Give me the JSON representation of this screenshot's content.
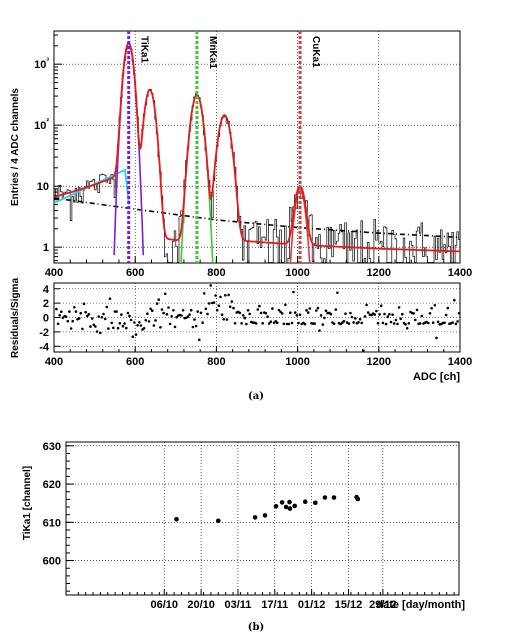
{
  "chart_data": [
    {
      "id": "spectrum",
      "type": "line",
      "ylabel": "Entries / 4 ADC channels",
      "yscale": "log",
      "xlim": [
        400,
        1400
      ],
      "ylim": [
        0.55,
        3500
      ],
      "xticks": [
        400,
        600,
        800,
        1000,
        1200,
        1400
      ],
      "yticks": [
        {
          "v": 1,
          "label": "1"
        },
        {
          "v": 10,
          "label": "10"
        },
        {
          "v": 100,
          "label": "10²"
        },
        {
          "v": 1000,
          "label": "10³"
        }
      ],
      "grid": true,
      "line_labels": [
        {
          "text": "TiKa1",
          "x": 584
        },
        {
          "text": "MnKa1",
          "x": 752
        },
        {
          "text": "CuKa1",
          "x": 1006
        }
      ],
      "peaks": [
        {
          "x": 584,
          "height": 2200,
          "width": 9
        },
        {
          "x": 636,
          "height": 380,
          "width": 10
        },
        {
          "x": 752,
          "height": 310,
          "width": 11
        },
        {
          "x": 820,
          "height": 145,
          "width": 12
        },
        {
          "x": 1006,
          "height": 9,
          "width": 10
        }
      ],
      "background": [
        [
          400,
          6.4
        ],
        [
          600,
          4.2
        ],
        [
          800,
          2.8
        ],
        [
          1000,
          2.1
        ],
        [
          1200,
          1.7
        ],
        [
          1400,
          1.45
        ]
      ],
      "series": [
        {
          "role": "data",
          "color": "#000000"
        },
        {
          "role": "total-fit",
          "color": "#e41a1c"
        },
        {
          "role": "background",
          "color": "#000000",
          "style": "dash-dot"
        },
        {
          "role": "tail",
          "color": "#2ad4e8",
          "points": [
            [
              400,
              5.3
            ],
            [
              575,
              18.5
            ],
            [
              585,
              5
            ]
          ]
        },
        {
          "role": "TiKa1-line",
          "color": "#7f1ae0",
          "x": 584
        },
        {
          "role": "MnKa1-line",
          "color": "#3cc63c",
          "x": 752
        },
        {
          "role": "CuKa1-line",
          "color": "#d04040",
          "x": 1006
        }
      ]
    },
    {
      "id": "residuals",
      "type": "scatter",
      "ylabel": "Residuals/Sigma",
      "xlabel": "ADC [ch]",
      "xlim": [
        400,
        1400
      ],
      "ylim": [
        -4.8,
        4.8
      ],
      "xticks": [
        400,
        600,
        800,
        1000,
        1200,
        1400
      ],
      "yticks": [
        -4,
        -2,
        0,
        2,
        4
      ],
      "grid": true
    },
    {
      "id": "stability",
      "type": "scatter",
      "ylabel": "TiKa1 [channel]",
      "xlabel": "date [day/month]",
      "ylim": [
        591,
        631
      ],
      "xlim": [
        0,
        160
      ],
      "yticks": [
        600,
        610,
        620,
        630
      ],
      "xticks": [
        {
          "v": 40,
          "label": "06/10"
        },
        {
          "v": 55,
          "label": "20/10"
        },
        {
          "v": 70,
          "label": "03/11"
        },
        {
          "v": 85,
          "label": "17/11"
        },
        {
          "v": 100,
          "label": "01/12"
        },
        {
          "v": 115,
          "label": "15/12"
        },
        {
          "v": 129,
          "label": "29/12"
        }
      ],
      "grid": true,
      "points": [
        [
          45,
          610.8
        ],
        [
          62,
          610.4
        ],
        [
          77,
          611.3
        ],
        [
          81,
          611.8
        ],
        [
          85.5,
          614.2
        ],
        [
          88,
          615.2
        ],
        [
          89.6,
          614.0
        ],
        [
          91,
          615.3
        ],
        [
          91.2,
          613.6
        ],
        [
          93.1,
          614.3
        ],
        [
          97.4,
          615.4
        ],
        [
          101.5,
          615.1
        ],
        [
          105.4,
          616.5
        ],
        [
          109.1,
          616.5
        ],
        [
          118.3,
          616.6
        ],
        [
          118.8,
          616.1
        ]
      ]
    }
  ],
  "captions": {
    "a": "(a)",
    "b": "(b)"
  }
}
